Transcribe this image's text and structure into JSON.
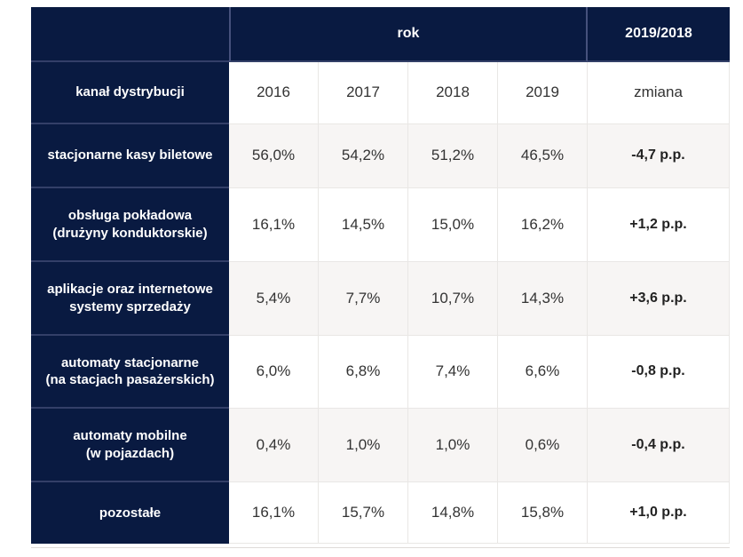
{
  "colors": {
    "navy": "#091a41",
    "navy_divider": "#333f68",
    "alt_row": "#f7f5f4",
    "cell_border": "#e9e7e5",
    "text": "#333333"
  },
  "chart_data": {
    "type": "table",
    "title": "",
    "group_headers": {
      "years_label": "rok",
      "change_label": "2019/2018"
    },
    "row_header": "kanał dystrybucji",
    "years": [
      "2016",
      "2017",
      "2018",
      "2019"
    ],
    "change_header": "zmiana",
    "rows": [
      {
        "label_lines": [
          "stacjonarne kasy biletowe"
        ],
        "values": [
          "56,0%",
          "54,2%",
          "51,2%",
          "46,5%"
        ],
        "change": "-4,7 p.p."
      },
      {
        "label_lines": [
          "obsługa pokładowa",
          "(drużyny konduktorskie)"
        ],
        "values": [
          "16,1%",
          "14,5%",
          "15,0%",
          "16,2%"
        ],
        "change": "+1,2 p.p."
      },
      {
        "label_lines": [
          "aplikacje oraz internetowe",
          "systemy sprzedaży"
        ],
        "values": [
          "5,4%",
          "7,7%",
          "10,7%",
          "14,3%"
        ],
        "change": "+3,6 p.p."
      },
      {
        "label_lines": [
          "automaty stacjonarne",
          "(na stacjach pasażerskich)"
        ],
        "values": [
          "6,0%",
          "6,8%",
          "7,4%",
          "6,6%"
        ],
        "change": "-0,8 p.p."
      },
      {
        "label_lines": [
          "automaty mobilne",
          "(w pojazdach)"
        ],
        "values": [
          "0,4%",
          "1,0%",
          "1,0%",
          "0,6%"
        ],
        "change": "-0,4 p.p."
      },
      {
        "label_lines": [
          "pozostałe"
        ],
        "values": [
          "16,1%",
          "15,7%",
          "14,8%",
          "15,8%"
        ],
        "change": "+1,0 p.p."
      }
    ]
  }
}
